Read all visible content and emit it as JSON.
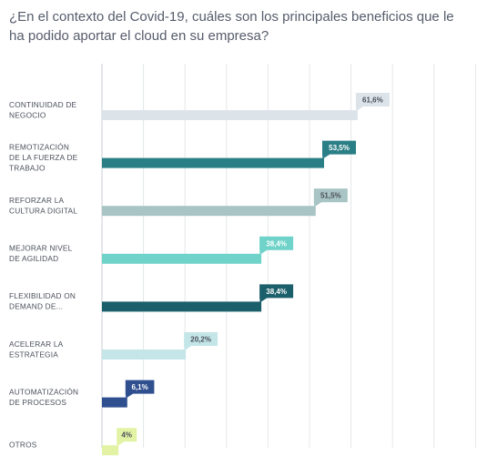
{
  "title": "¿En el contexto del Covid-19, cuáles son los principales beneficios que le ha podido aportar el cloud en su empresa?",
  "chart_data": {
    "type": "bar",
    "orientation": "horizontal",
    "title": "¿En el contexto del Covid-19, cuáles son los principales beneficios que le ha podido aportar el cloud en su empresa?",
    "categories": [
      [
        "CONTINUIDAD DE",
        "NEGOCIO"
      ],
      [
        "REMOTIZACIÓN",
        "DE LA FUERZA DE",
        "TRABAJO"
      ],
      [
        "REFORZAR LA",
        "CULTURA DIGITAL"
      ],
      [
        "MEJORAR NIVEL",
        "DE AGILIDAD"
      ],
      [
        "FLEXIBILIDAD ON",
        "DEMAND DE..."
      ],
      [
        "ACELERAR LA",
        "ESTRATEGIA"
      ],
      [
        "AUTOMATIZACIÓN",
        "DE PROCESOS"
      ],
      [
        "OTROS"
      ]
    ],
    "values": [
      61.6,
      53.5,
      51.5,
      38.4,
      38.4,
      20.2,
      6.1,
      4
    ],
    "labels": [
      "61,6%",
      "53,5%",
      "51,5%",
      "38,4%",
      "38,4%",
      "20,2%",
      "6,1%",
      "4%"
    ],
    "colors": [
      "#dde4e9",
      "#2a7f86",
      "#a8c4c4",
      "#6fd3c9",
      "#1b5f6b",
      "#c4e6e8",
      "#2f4f8f",
      "#e3f3a5"
    ],
    "label_text_colors": [
      "#4a4f5a",
      "#ffffff",
      "#4a4f5a",
      "#ffffff",
      "#ffffff",
      "#4a4f5a",
      "#ffffff",
      "#4a4f5a"
    ],
    "xlim": [
      0,
      90
    ],
    "grid": true,
    "legend": "none"
  }
}
